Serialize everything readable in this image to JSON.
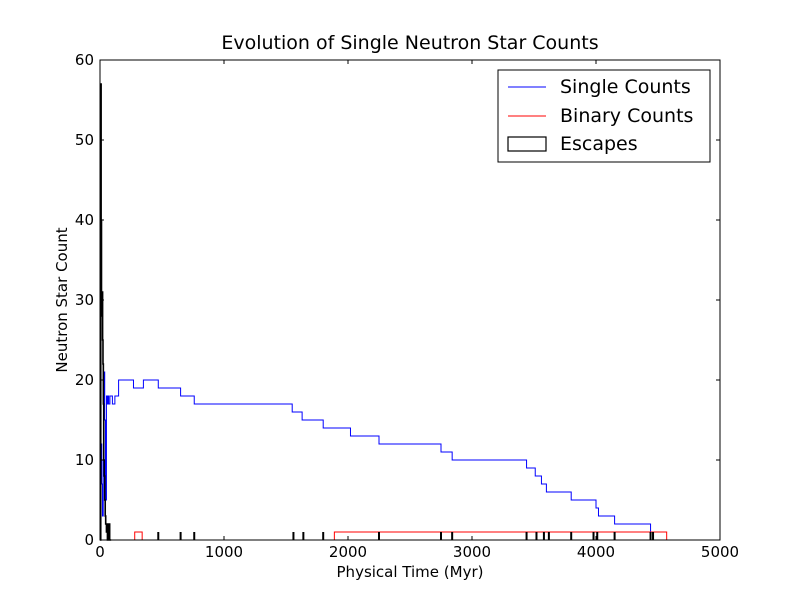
{
  "chart_data": {
    "type": "line",
    "title": "Evolution of Single Neutron Star Counts",
    "xlabel": "Physical Time (Myr)",
    "ylabel": "Neutron Star Count",
    "xlim": [
      0,
      5000
    ],
    "ylim": [
      0,
      60
    ],
    "xticks": [
      "0",
      "1000",
      "2000",
      "3000",
      "4000",
      "5000"
    ],
    "yticks": [
      "0",
      "10",
      "20",
      "30",
      "40",
      "50",
      "60"
    ],
    "grid": false,
    "legend_position": "top-right",
    "series": [
      {
        "name": "Single Counts",
        "color": "#0000ff",
        "style": "step",
        "x": [
          0,
          8,
          14,
          20,
          26,
          32,
          38,
          44,
          52,
          58,
          64,
          70,
          80,
          100,
          120,
          150,
          270,
          350,
          470,
          650,
          760,
          1150,
          1550,
          1630,
          1800,
          2020,
          2250,
          2750,
          2840,
          3200,
          3440,
          3510,
          3560,
          3600,
          3800,
          3980,
          4000,
          4020,
          4150,
          4420,
          4440
        ],
        "y": [
          2,
          12,
          7,
          3,
          10,
          21,
          15,
          5,
          18,
          17,
          18,
          17,
          18,
          17,
          18,
          20,
          19,
          20,
          19,
          18,
          17,
          17,
          16,
          15,
          14,
          13,
          12,
          11,
          10,
          10,
          9,
          8,
          7,
          6,
          5,
          5,
          4,
          3,
          2,
          2,
          0
        ]
      },
      {
        "name": "Binary Counts",
        "color": "#ff0000",
        "style": "step",
        "x": [
          0,
          280,
          340,
          1890,
          4570
        ],
        "y": [
          0,
          1,
          0,
          1,
          0
        ]
      }
    ],
    "histogram": {
      "name": "Escapes",
      "color": "#000000",
      "style": "step",
      "x": [
        0,
        6,
        9,
        12,
        15,
        18,
        21,
        24,
        27,
        30,
        34,
        38,
        42,
        46,
        52,
        60,
        64,
        68,
        72,
        78,
        90
      ],
      "y": [
        0,
        57,
        40,
        31,
        28,
        31,
        25,
        22,
        17,
        10,
        8,
        5,
        3,
        2,
        1,
        0,
        2,
        0,
        2,
        0,
        0
      ]
    },
    "escape_spikes": [
      {
        "x": 470,
        "y": 1
      },
      {
        "x": 650,
        "y": 1
      },
      {
        "x": 760,
        "y": 1
      },
      {
        "x": 1560,
        "y": 1
      },
      {
        "x": 1640,
        "y": 1
      },
      {
        "x": 1800,
        "y": 1
      },
      {
        "x": 2250,
        "y": 1
      },
      {
        "x": 2750,
        "y": 1
      },
      {
        "x": 2840,
        "y": 1
      },
      {
        "x": 3440,
        "y": 1
      },
      {
        "x": 3520,
        "y": 1
      },
      {
        "x": 3580,
        "y": 1
      },
      {
        "x": 3620,
        "y": 1
      },
      {
        "x": 3800,
        "y": 1
      },
      {
        "x": 3980,
        "y": 1
      },
      {
        "x": 4010,
        "y": 1
      },
      {
        "x": 4150,
        "y": 1
      },
      {
        "x": 4440,
        "y": 1
      },
      {
        "x": 4460,
        "y": 1
      }
    ]
  }
}
